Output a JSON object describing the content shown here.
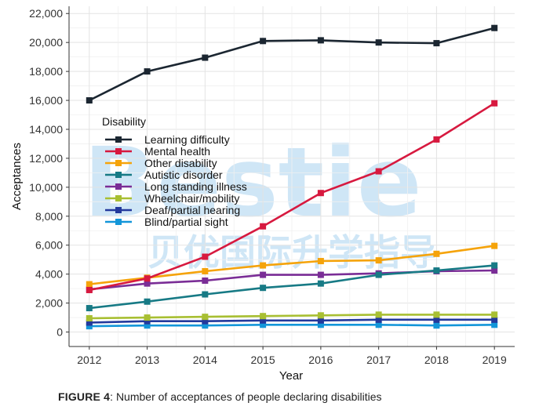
{
  "caption": {
    "label": "FIGURE 4",
    "text": ": Number of acceptances of people declaring disabilities"
  },
  "watermark": {
    "brand": "Bestie",
    "tagline": "贝优国际升学指导"
  },
  "chart_data": {
    "type": "line",
    "title": "",
    "xlabel": "Year",
    "ylabel": "Acceptances",
    "x": [
      2012,
      2013,
      2014,
      2015,
      2016,
      2017,
      2018,
      2019
    ],
    "ylim": [
      0,
      22000
    ],
    "yticks": [
      0,
      2000,
      4000,
      6000,
      8000,
      10000,
      12000,
      14000,
      16000,
      18000,
      20000,
      22000
    ],
    "ytick_labels": [
      "0",
      "2,000",
      "4,000",
      "6,000",
      "8,000",
      "10,000",
      "12,000",
      "14,000",
      "16,000",
      "18,000",
      "20,000",
      "22,000"
    ],
    "grid": true,
    "legend_title": "Disability",
    "legend_position": "left-inside",
    "series": [
      {
        "name": "Learning difficulty",
        "color": "#1b2631",
        "values": [
          16000,
          18000,
          18950,
          20100,
          20150,
          20000,
          19950,
          21000
        ]
      },
      {
        "name": "Mental health",
        "color": "#d7193f",
        "values": [
          2900,
          3700,
          5200,
          7300,
          9600,
          11100,
          13300,
          15800
        ]
      },
      {
        "name": "Other disability",
        "color": "#f5a30a",
        "values": [
          3300,
          3750,
          4200,
          4600,
          4900,
          4950,
          5400,
          5950
        ]
      },
      {
        "name": "Autistic disorder",
        "color": "#177a85",
        "values": [
          1650,
          2100,
          2600,
          3050,
          3350,
          3950,
          4250,
          4600
        ]
      },
      {
        "name": "Long standing illness",
        "color": "#7a2d96",
        "values": [
          2950,
          3350,
          3550,
          3950,
          3950,
          4050,
          4200,
          4250
        ]
      },
      {
        "name": "Wheelchair/mobility",
        "color": "#a8bf32",
        "values": [
          950,
          1000,
          1050,
          1100,
          1150,
          1200,
          1200,
          1200
        ]
      },
      {
        "name": "Deaf/partial hearing",
        "color": "#23399c",
        "values": [
          650,
          750,
          750,
          800,
          800,
          850,
          850,
          850
        ]
      },
      {
        "name": "Blind/partial sight",
        "color": "#1396d9",
        "values": [
          400,
          450,
          450,
          500,
          500,
          500,
          450,
          500
        ]
      }
    ]
  }
}
